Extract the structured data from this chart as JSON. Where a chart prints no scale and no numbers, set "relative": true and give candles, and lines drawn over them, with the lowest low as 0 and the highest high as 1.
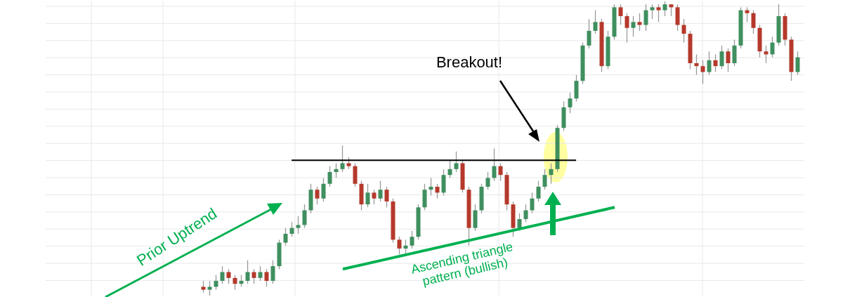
{
  "chart_data": {
    "type": "candlestick",
    "relative": true,
    "grid": true,
    "categories": [
      null,
      null,
      null,
      null,
      null,
      null,
      null,
      null,
      null,
      null,
      null,
      null,
      null,
      null,
      null,
      null,
      null,
      null,
      null,
      null,
      null,
      null,
      null,
      null,
      null,
      null,
      null,
      null,
      null,
      null,
      null,
      null,
      null,
      null,
      null,
      null,
      null,
      null,
      null,
      null,
      null,
      null,
      null,
      null,
      null,
      null,
      null,
      null,
      null,
      null,
      null,
      null,
      null,
      null,
      null,
      null,
      null,
      null,
      null,
      null,
      null,
      null,
      null,
      null,
      null,
      null,
      null,
      null,
      null,
      null,
      null,
      null,
      null,
      null,
      null,
      null,
      null,
      null,
      null,
      null,
      null,
      null,
      null,
      null,
      null,
      null,
      null,
      null,
      null,
      null,
      null,
      null,
      null,
      null,
      null
    ],
    "ohlc": [
      [
        0.03,
        0.05,
        0.01,
        0.02
      ],
      [
        0.02,
        0.05,
        0.0,
        0.03
      ],
      [
        0.03,
        0.07,
        0.02,
        0.05
      ],
      [
        0.05,
        0.1,
        0.04,
        0.08
      ],
      [
        0.08,
        0.09,
        0.04,
        0.06
      ],
      [
        0.06,
        0.07,
        0.02,
        0.04
      ],
      [
        0.04,
        0.07,
        0.03,
        0.05
      ],
      [
        0.05,
        0.12,
        0.04,
        0.08
      ],
      [
        0.08,
        0.09,
        0.04,
        0.06
      ],
      [
        0.06,
        0.1,
        0.05,
        0.08
      ],
      [
        0.08,
        0.09,
        0.03,
        0.05
      ],
      [
        0.05,
        0.12,
        0.04,
        0.1
      ],
      [
        0.1,
        0.19,
        0.09,
        0.18
      ],
      [
        0.18,
        0.23,
        0.17,
        0.21
      ],
      [
        0.21,
        0.25,
        0.2,
        0.23
      ],
      [
        0.23,
        0.27,
        0.21,
        0.24
      ],
      [
        0.24,
        0.31,
        0.23,
        0.29
      ],
      [
        0.29,
        0.38,
        0.28,
        0.36
      ],
      [
        0.36,
        0.37,
        0.31,
        0.33
      ],
      [
        0.33,
        0.4,
        0.32,
        0.38
      ],
      [
        0.38,
        0.44,
        0.37,
        0.42
      ],
      [
        0.42,
        0.45,
        0.4,
        0.43
      ],
      [
        0.43,
        0.51,
        0.42,
        0.45
      ],
      [
        0.45,
        0.47,
        0.43,
        0.44
      ],
      [
        0.44,
        0.45,
        0.37,
        0.38
      ],
      [
        0.38,
        0.39,
        0.29,
        0.31
      ],
      [
        0.31,
        0.38,
        0.3,
        0.35
      ],
      [
        0.35,
        0.36,
        0.31,
        0.33
      ],
      [
        0.33,
        0.39,
        0.32,
        0.36
      ],
      [
        0.36,
        0.37,
        0.3,
        0.32
      ],
      [
        0.32,
        0.33,
        0.18,
        0.19
      ],
      [
        0.19,
        0.2,
        0.14,
        0.16
      ],
      [
        0.16,
        0.19,
        0.14,
        0.17
      ],
      [
        0.17,
        0.22,
        0.16,
        0.2
      ],
      [
        0.2,
        0.31,
        0.19,
        0.3
      ],
      [
        0.3,
        0.38,
        0.29,
        0.36
      ],
      [
        0.36,
        0.4,
        0.34,
        0.37
      ],
      [
        0.37,
        0.38,
        0.33,
        0.35
      ],
      [
        0.35,
        0.43,
        0.34,
        0.41
      ],
      [
        0.41,
        0.46,
        0.4,
        0.43
      ],
      [
        0.43,
        0.49,
        0.42,
        0.45
      ],
      [
        0.45,
        0.46,
        0.35,
        0.36
      ],
      [
        0.36,
        0.37,
        0.17,
        0.23
      ],
      [
        0.23,
        0.31,
        0.22,
        0.29
      ],
      [
        0.29,
        0.38,
        0.28,
        0.37
      ],
      [
        0.37,
        0.42,
        0.36,
        0.4
      ],
      [
        0.4,
        0.5,
        0.39,
        0.44
      ],
      [
        0.44,
        0.45,
        0.39,
        0.41
      ],
      [
        0.41,
        0.42,
        0.29,
        0.31
      ],
      [
        0.31,
        0.32,
        0.2,
        0.23
      ],
      [
        0.23,
        0.28,
        0.22,
        0.26
      ],
      [
        0.26,
        0.31,
        0.25,
        0.29
      ],
      [
        0.29,
        0.35,
        0.28,
        0.33
      ],
      [
        0.33,
        0.39,
        0.32,
        0.37
      ],
      [
        0.37,
        0.43,
        0.36,
        0.41
      ],
      [
        0.41,
        0.45,
        0.38,
        0.43
      ],
      [
        0.43,
        0.58,
        0.42,
        0.57
      ],
      [
        0.57,
        0.66,
        0.56,
        0.64
      ],
      [
        0.64,
        0.69,
        0.62,
        0.67
      ],
      [
        0.67,
        0.75,
        0.66,
        0.73
      ],
      [
        0.73,
        0.86,
        0.72,
        0.85
      ],
      [
        0.85,
        0.94,
        0.84,
        0.9
      ],
      [
        0.9,
        0.97,
        0.89,
        0.93
      ],
      [
        0.93,
        0.94,
        0.76,
        0.78
      ],
      [
        0.78,
        0.9,
        0.77,
        0.88
      ],
      [
        0.88,
        0.99,
        0.87,
        0.98
      ],
      [
        0.98,
        0.99,
        0.92,
        0.95
      ],
      [
        0.95,
        0.96,
        0.86,
        0.91
      ],
      [
        0.91,
        0.95,
        0.88,
        0.93
      ],
      [
        0.93,
        0.96,
        0.9,
        0.92
      ],
      [
        0.92,
        0.99,
        0.9,
        0.97
      ],
      [
        0.97,
        0.99,
        0.94,
        0.98
      ],
      [
        0.98,
        0.99,
        0.93,
        0.97
      ],
      [
        0.97,
        1.0,
        0.95,
        0.99
      ],
      [
        0.99,
        0.99,
        0.95,
        0.98
      ],
      [
        0.98,
        0.99,
        0.9,
        0.92
      ],
      [
        0.92,
        0.94,
        0.86,
        0.89
      ],
      [
        0.89,
        0.9,
        0.77,
        0.79
      ],
      [
        0.79,
        0.82,
        0.75,
        0.78
      ],
      [
        0.78,
        0.8,
        0.72,
        0.76
      ],
      [
        0.76,
        0.83,
        0.75,
        0.8
      ],
      [
        0.8,
        0.82,
        0.76,
        0.78
      ],
      [
        0.78,
        0.85,
        0.77,
        0.83
      ],
      [
        0.83,
        0.84,
        0.76,
        0.79
      ],
      [
        0.79,
        0.87,
        0.78,
        0.85
      ],
      [
        0.85,
        0.98,
        0.84,
        0.97
      ],
      [
        0.97,
        0.98,
        0.93,
        0.96
      ],
      [
        0.96,
        0.97,
        0.89,
        0.91
      ],
      [
        0.91,
        0.92,
        0.81,
        0.83
      ],
      [
        0.83,
        0.85,
        0.79,
        0.82
      ],
      [
        0.82,
        0.88,
        0.81,
        0.86
      ],
      [
        0.86,
        0.99,
        0.85,
        0.95
      ],
      [
        0.95,
        0.96,
        0.85,
        0.87
      ],
      [
        0.87,
        0.88,
        0.73,
        0.76
      ],
      [
        0.76,
        0.83,
        0.75,
        0.81
      ]
    ],
    "series": [
      {
        "type": "line",
        "color": "#00b050",
        "values": [
          null,
          null,
          null,
          null,
          null,
          null,
          null,
          null,
          null,
          null,
          null,
          null,
          null,
          null,
          null,
          null,
          null,
          null,
          null,
          null,
          null,
          null,
          0.09,
          null,
          null,
          null,
          null,
          null,
          null,
          null,
          null,
          null,
          null,
          null,
          null,
          null,
          null,
          null,
          null,
          null,
          null,
          null,
          null,
          null,
          null,
          null,
          null,
          null,
          null,
          null,
          null,
          null,
          null,
          null,
          null,
          null,
          null,
          null,
          null,
          null,
          null,
          null,
          null,
          null,
          null,
          0.3,
          null,
          null,
          null,
          null,
          null,
          null,
          null,
          null,
          null,
          null,
          null,
          null,
          null,
          null,
          null,
          null,
          null,
          null,
          null,
          null,
          null,
          null,
          null,
          null,
          null,
          null,
          null,
          null,
          null
        ]
      }
    ],
    "ref_lines": [
      {
        "axis": "y",
        "value": 0.46,
        "color": "#000000"
      }
    ],
    "annotations": [
      "Prior Uptrend",
      "Breakout!",
      "Ascending triangle\npattern (bullish)"
    ]
  }
}
